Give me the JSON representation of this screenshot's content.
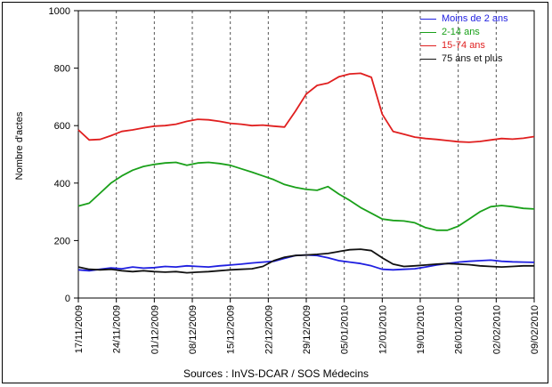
{
  "chart_data": {
    "type": "line",
    "title": "",
    "xlabel": "",
    "ylabel": "Nombre d'actes",
    "source": "Sources : InVS-DCAR / SOS Médecins",
    "ylim": [
      0,
      1000
    ],
    "yticks": [
      0,
      200,
      400,
      600,
      800,
      1000
    ],
    "x_start": "17/11/2009",
    "x_end": "09/02/2010",
    "xticks": [
      "17/11/2009",
      "24/11/2009",
      "01/12/2009",
      "08/12/2009",
      "15/12/2009",
      "22/12/2009",
      "29/12/2009",
      "05/01/2010",
      "12/01/2010",
      "19/01/2010",
      "26/01/2010",
      "02/02/2010",
      "09/02/2010"
    ],
    "grid": "vertical dashed",
    "legend_position": "top-right",
    "series": [
      {
        "name": "Moins de 2 ans",
        "color": "#1f1fe0",
        "points": [
          [
            0,
            98
          ],
          [
            2,
            95
          ],
          [
            4,
            100
          ],
          [
            6,
            105
          ],
          [
            8,
            102
          ],
          [
            10,
            108
          ],
          [
            12,
            104
          ],
          [
            14,
            106
          ],
          [
            16,
            110
          ],
          [
            18,
            108
          ],
          [
            20,
            112
          ],
          [
            22,
            110
          ],
          [
            24,
            108
          ],
          [
            26,
            112
          ],
          [
            28,
            115
          ],
          [
            30,
            118
          ],
          [
            32,
            122
          ],
          [
            34,
            125
          ],
          [
            36,
            128
          ],
          [
            38,
            138
          ],
          [
            40,
            148
          ],
          [
            42,
            150
          ],
          [
            44,
            148
          ],
          [
            46,
            140
          ],
          [
            48,
            130
          ],
          [
            50,
            125
          ],
          [
            52,
            120
          ],
          [
            54,
            112
          ],
          [
            56,
            100
          ],
          [
            58,
            98
          ],
          [
            60,
            100
          ],
          [
            62,
            102
          ],
          [
            64,
            108
          ],
          [
            66,
            115
          ],
          [
            68,
            120
          ],
          [
            70,
            125
          ],
          [
            72,
            128
          ],
          [
            74,
            130
          ],
          [
            76,
            132
          ],
          [
            78,
            128
          ],
          [
            80,
            126
          ],
          [
            82,
            125
          ],
          [
            84,
            124
          ]
        ]
      },
      {
        "name": "2-14 ans",
        "color": "#1aa01a",
        "points": [
          [
            0,
            320
          ],
          [
            2,
            330
          ],
          [
            4,
            365
          ],
          [
            6,
            400
          ],
          [
            8,
            425
          ],
          [
            10,
            445
          ],
          [
            12,
            458
          ],
          [
            14,
            465
          ],
          [
            16,
            470
          ],
          [
            18,
            472
          ],
          [
            20,
            462
          ],
          [
            22,
            470
          ],
          [
            24,
            472
          ],
          [
            26,
            468
          ],
          [
            28,
            462
          ],
          [
            30,
            450
          ],
          [
            32,
            438
          ],
          [
            34,
            425
          ],
          [
            36,
            412
          ],
          [
            38,
            395
          ],
          [
            40,
            385
          ],
          [
            42,
            378
          ],
          [
            44,
            375
          ],
          [
            46,
            388
          ],
          [
            48,
            362
          ],
          [
            50,
            340
          ],
          [
            52,
            315
          ],
          [
            54,
            295
          ],
          [
            56,
            275
          ],
          [
            58,
            270
          ],
          [
            60,
            268
          ],
          [
            62,
            262
          ],
          [
            64,
            245
          ],
          [
            66,
            236
          ],
          [
            68,
            236
          ],
          [
            70,
            250
          ],
          [
            72,
            275
          ],
          [
            74,
            300
          ],
          [
            76,
            318
          ],
          [
            78,
            322
          ],
          [
            80,
            318
          ],
          [
            82,
            312
          ],
          [
            84,
            310
          ]
        ]
      },
      {
        "name": "15-74 ans",
        "color": "#e01f1f",
        "points": [
          [
            0,
            585
          ],
          [
            2,
            550
          ],
          [
            4,
            552
          ],
          [
            6,
            565
          ],
          [
            8,
            580
          ],
          [
            10,
            585
          ],
          [
            12,
            592
          ],
          [
            14,
            598
          ],
          [
            16,
            600
          ],
          [
            18,
            605
          ],
          [
            20,
            615
          ],
          [
            22,
            622
          ],
          [
            24,
            620
          ],
          [
            26,
            615
          ],
          [
            28,
            608
          ],
          [
            30,
            605
          ],
          [
            32,
            600
          ],
          [
            34,
            602
          ],
          [
            36,
            598
          ],
          [
            38,
            595
          ],
          [
            40,
            650
          ],
          [
            42,
            710
          ],
          [
            44,
            740
          ],
          [
            46,
            748
          ],
          [
            48,
            770
          ],
          [
            50,
            780
          ],
          [
            52,
            782
          ],
          [
            54,
            768
          ],
          [
            56,
            640
          ],
          [
            58,
            580
          ],
          [
            60,
            570
          ],
          [
            62,
            560
          ],
          [
            64,
            555
          ],
          [
            66,
            552
          ],
          [
            68,
            548
          ],
          [
            70,
            544
          ],
          [
            72,
            542
          ],
          [
            74,
            545
          ],
          [
            76,
            550
          ],
          [
            78,
            555
          ],
          [
            80,
            553
          ],
          [
            82,
            556
          ],
          [
            84,
            562
          ]
        ]
      },
      {
        "name": "75 ans et plus",
        "color": "#111111",
        "points": [
          [
            0,
            108
          ],
          [
            2,
            100
          ],
          [
            4,
            98
          ],
          [
            6,
            100
          ],
          [
            8,
            95
          ],
          [
            10,
            92
          ],
          [
            12,
            95
          ],
          [
            14,
            92
          ],
          [
            16,
            90
          ],
          [
            18,
            92
          ],
          [
            20,
            88
          ],
          [
            22,
            90
          ],
          [
            24,
            92
          ],
          [
            26,
            95
          ],
          [
            28,
            98
          ],
          [
            30,
            100
          ],
          [
            32,
            102
          ],
          [
            34,
            110
          ],
          [
            36,
            130
          ],
          [
            38,
            142
          ],
          [
            40,
            148
          ],
          [
            42,
            150
          ],
          [
            44,
            152
          ],
          [
            46,
            155
          ],
          [
            48,
            162
          ],
          [
            50,
            168
          ],
          [
            52,
            170
          ],
          [
            54,
            165
          ],
          [
            56,
            140
          ],
          [
            58,
            118
          ],
          [
            60,
            110
          ],
          [
            62,
            112
          ],
          [
            64,
            115
          ],
          [
            66,
            118
          ],
          [
            68,
            120
          ],
          [
            70,
            118
          ],
          [
            72,
            116
          ],
          [
            74,
            112
          ],
          [
            76,
            110
          ],
          [
            78,
            108
          ],
          [
            80,
            110
          ],
          [
            82,
            112
          ],
          [
            84,
            112
          ]
        ]
      }
    ]
  }
}
